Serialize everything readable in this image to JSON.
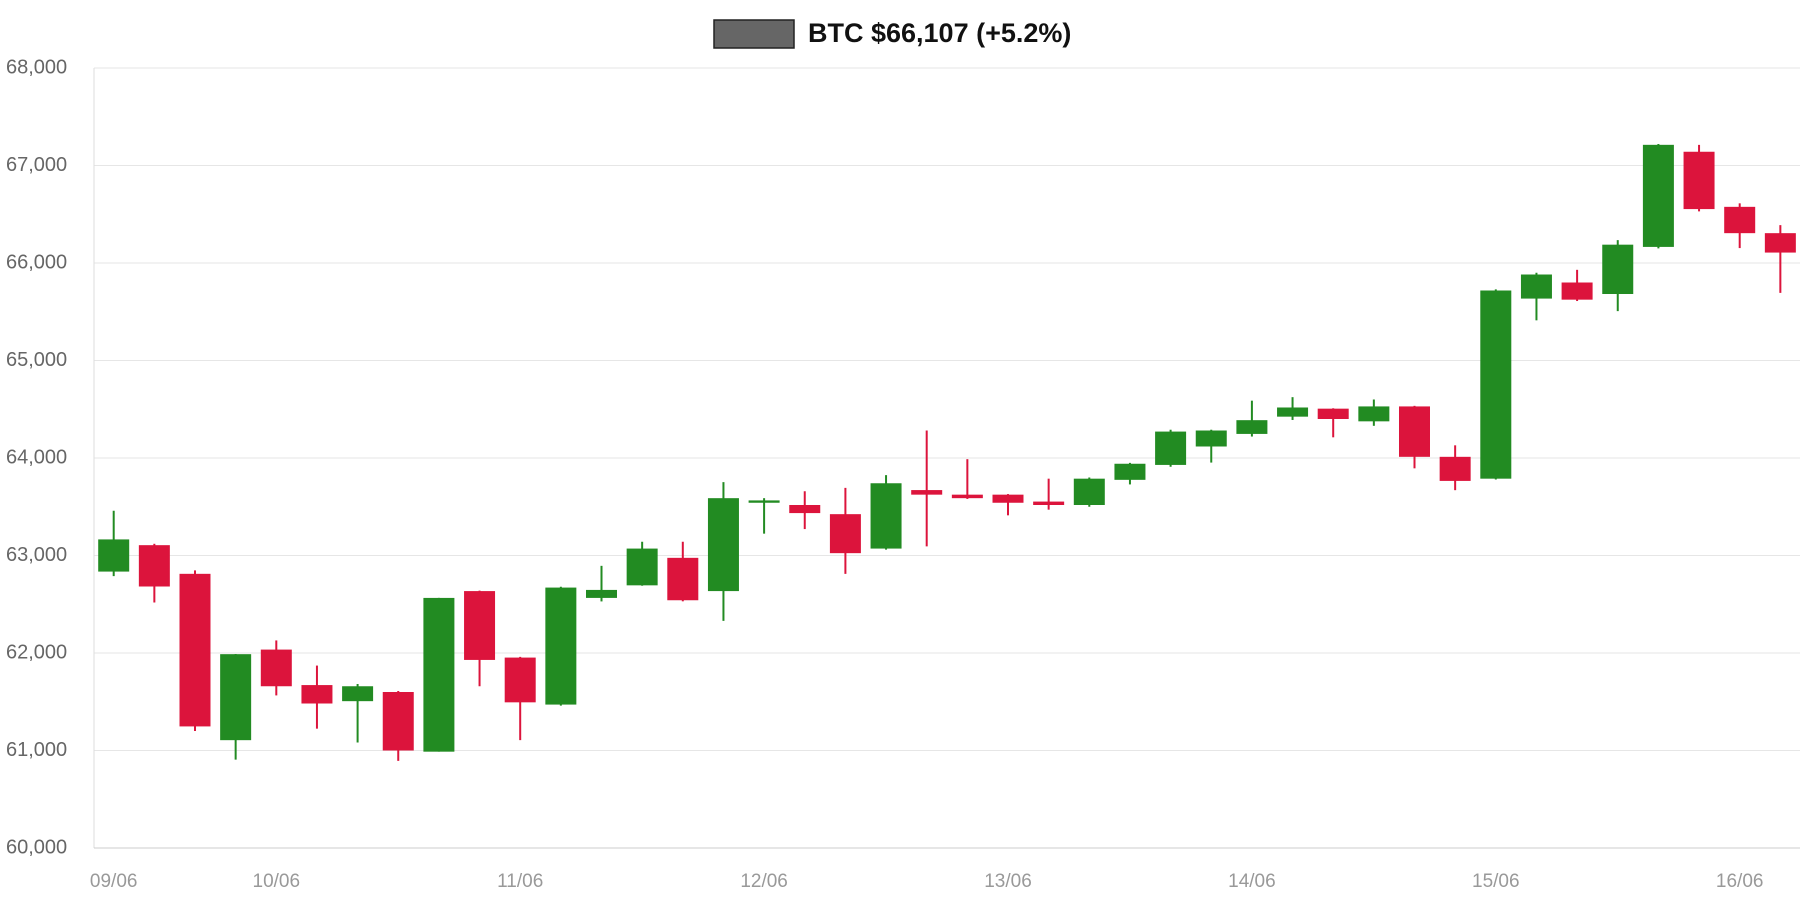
{
  "chart_data": {
    "type": "candlestick",
    "series": [
      {
        "name": "BTC $66,107 (+5.2%)",
        "color": "#666666",
        "up_color": "#228b22",
        "down_color": "#dc143c",
        "open": [
          62835,
          63106,
          62812,
          61106,
          62035,
          61671,
          61506,
          61600,
          60988,
          62635,
          61953,
          61471,
          62565,
          62694,
          62976,
          62635,
          63541,
          63518,
          63424,
          63071,
          63671,
          63624,
          63624,
          63553,
          63518,
          63776,
          63929,
          64118,
          64247,
          64424,
          64506,
          64376,
          64529,
          64012,
          63788,
          65635,
          65800,
          65682,
          66165,
          67141,
          66576,
          66306
        ],
        "high": [
          63459,
          63120,
          62847,
          61990,
          62129,
          61871,
          61682,
          61610,
          62565,
          62640,
          61960,
          62680,
          62894,
          63141,
          63141,
          63753,
          63588,
          63659,
          63694,
          63824,
          64282,
          63988,
          63630,
          63788,
          63800,
          63950,
          64290,
          64290,
          64588,
          64624,
          64510,
          64600,
          64535,
          64130,
          65730,
          65900,
          65930,
          66235,
          67220,
          67212,
          66612,
          66388
        ],
        "low": [
          62788,
          62518,
          61200,
          60906,
          61565,
          61224,
          61082,
          60894,
          60988,
          61659,
          61106,
          61460,
          62529,
          62690,
          62530,
          62329,
          63224,
          63271,
          62812,
          63060,
          63094,
          63580,
          63412,
          63470,
          63500,
          63729,
          63910,
          63953,
          64220,
          64390,
          64212,
          64330,
          63894,
          63670,
          63780,
          65412,
          65610,
          65506,
          66150,
          66530,
          66153,
          65694
        ],
        "close": [
          63165,
          62682,
          61247,
          61988,
          61659,
          61482,
          61659,
          61000,
          62565,
          61929,
          61494,
          62671,
          62647,
          63071,
          62541,
          63588,
          63565,
          63435,
          63024,
          63741,
          63624,
          63588,
          63541,
          63518,
          63788,
          63941,
          64271,
          64282,
          64388,
          64518,
          64400,
          64529,
          64012,
          63765,
          65718,
          65882,
          65624,
          66188,
          67212,
          66553,
          66306,
          66107
        ]
      }
    ],
    "categories": [
      "09/06",
      null,
      null,
      null,
      "10/06",
      null,
      null,
      null,
      null,
      null,
      "11/06",
      null,
      null,
      null,
      null,
      null,
      "12/06",
      null,
      null,
      null,
      null,
      null,
      "13/06",
      null,
      null,
      null,
      null,
      null,
      "14/06",
      null,
      null,
      null,
      null,
      null,
      "15/06",
      null,
      null,
      null,
      null,
      null,
      "16/06",
      null
    ],
    "ylim": [
      60000,
      68000
    ],
    "yticks": [
      {
        "value": 60000,
        "label": "60,000"
      },
      {
        "value": 61000,
        "label": "61,000"
      },
      {
        "value": 62000,
        "label": "62,000"
      },
      {
        "value": 63000,
        "label": "63,000"
      },
      {
        "value": 64000,
        "label": "64,000"
      },
      {
        "value": 65000,
        "label": "65,000"
      },
      {
        "value": 66000,
        "label": "66,000"
      },
      {
        "value": 67000,
        "label": "67,000"
      },
      {
        "value": 68000,
        "label": "68,000"
      }
    ],
    "grid": true
  }
}
